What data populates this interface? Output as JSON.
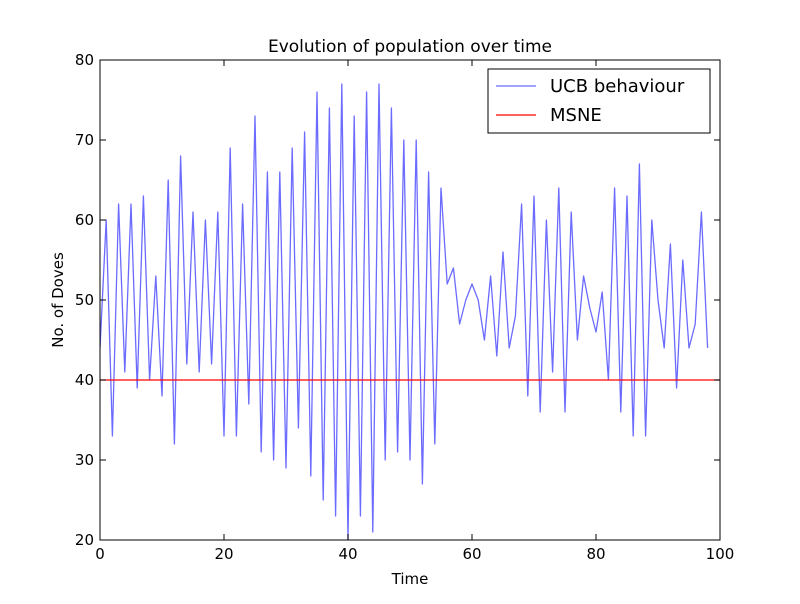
{
  "chart_data": {
    "type": "line",
    "title": "Evolution of population over time",
    "xlabel": "Time",
    "ylabel": "No. of Doves",
    "xlim": [
      0,
      100
    ],
    "ylim": [
      20,
      80
    ],
    "xticks": [
      0,
      20,
      40,
      60,
      80,
      100
    ],
    "yticks": [
      20,
      30,
      40,
      50,
      60,
      70,
      80
    ],
    "grid": false,
    "legend_position": "top-right",
    "series": [
      {
        "name": "UCB behaviour",
        "color": "#6b6bff",
        "x": [
          0,
          1,
          2,
          3,
          4,
          5,
          6,
          7,
          8,
          9,
          10,
          11,
          12,
          13,
          14,
          15,
          16,
          17,
          18,
          19,
          20,
          21,
          22,
          23,
          24,
          25,
          26,
          27,
          28,
          29,
          30,
          31,
          32,
          33,
          34,
          35,
          36,
          37,
          38,
          39,
          40,
          41,
          42,
          43,
          44,
          45,
          46,
          47,
          48,
          49,
          50,
          51,
          52,
          53,
          54,
          55,
          56,
          57,
          58,
          59,
          60,
          61,
          62,
          63,
          64,
          65,
          66,
          67,
          68,
          69,
          70,
          71,
          72,
          73,
          74,
          75,
          76,
          77,
          78,
          79,
          80,
          81,
          82,
          83,
          84,
          85,
          86,
          87,
          88,
          89,
          90,
          91,
          92,
          93,
          94,
          95,
          96,
          97,
          98
        ],
        "y": [
          44,
          60,
          33,
          62,
          41,
          62,
          39,
          63,
          40,
          53,
          38,
          65,
          32,
          68,
          42,
          61,
          41,
          60,
          42,
          61,
          33,
          69,
          33,
          62,
          37,
          73,
          31,
          66,
          30,
          66,
          29,
          69,
          34,
          71,
          28,
          76,
          25,
          74,
          23,
          77,
          20,
          73,
          23,
          76,
          21,
          77,
          30,
          74,
          31,
          70,
          30,
          70,
          27,
          66,
          32,
          64,
          52,
          54,
          47,
          50,
          52,
          50,
          45,
          53,
          43,
          56,
          44,
          48,
          62,
          38,
          63,
          36,
          60,
          41,
          64,
          36,
          61,
          45,
          53,
          49,
          46,
          51,
          40,
          64,
          36,
          63,
          33,
          67,
          33,
          60,
          50,
          44,
          57,
          39,
          55,
          44,
          47,
          61,
          44
        ]
      },
      {
        "name": "MSNE",
        "color": "#ff0000",
        "x": [
          0,
          100
        ],
        "y": [
          40,
          40
        ]
      }
    ]
  }
}
